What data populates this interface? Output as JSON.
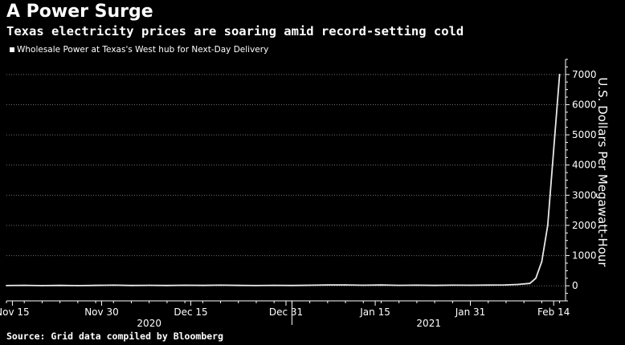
{
  "title": "A Power Surge",
  "subtitle": "Texas electricity prices are soaring amid record-setting cold",
  "source": "Source: Grid data compiled by Bloomberg",
  "colors": {
    "background": "#000000",
    "line": "#e8e8e8",
    "text": "#ffffff",
    "grid": "#707070"
  },
  "chart_data": {
    "type": "line",
    "title": "A Power Surge",
    "subtitle": "Texas electricity prices are soaring amid record-setting cold",
    "legend_position": "top-left",
    "grid": true,
    "y_axis_side": "right",
    "ylabel": "U.S. Dollars Per Megawatt-Hour",
    "ylim": [
      -500,
      7500
    ],
    "yticks": [
      0,
      1000,
      2000,
      3000,
      4000,
      5000,
      6000,
      7000
    ],
    "xlim": [
      "2020-11-14",
      "2021-02-16"
    ],
    "xticks": [
      {
        "date": "2020-11-15",
        "label": "Nov 15"
      },
      {
        "date": "2020-11-30",
        "label": "Nov 30"
      },
      {
        "date": "2020-12-15",
        "label": "Dec 15"
      },
      {
        "date": "2020-12-31",
        "label": "Dec 31"
      },
      {
        "date": "2021-01-15",
        "label": "Jan 15"
      },
      {
        "date": "2021-01-31",
        "label": "Jan 31"
      },
      {
        "date": "2021-02-14",
        "label": "Feb 14"
      }
    ],
    "year_labels": [
      {
        "date": "2020-12-08",
        "label": "2020"
      },
      {
        "date": "2021-01-24",
        "label": "2021"
      }
    ],
    "series": [
      {
        "name": "Wholesale Power at Texas's West hub for Next-Day Delivery",
        "points": [
          {
            "x": "2020-11-14",
            "y": 8
          },
          {
            "x": "2020-11-17",
            "y": 15
          },
          {
            "x": "2020-11-20",
            "y": 6
          },
          {
            "x": "2020-11-23",
            "y": 12
          },
          {
            "x": "2020-11-26",
            "y": 5
          },
          {
            "x": "2020-11-29",
            "y": 14
          },
          {
            "x": "2020-12-02",
            "y": 22
          },
          {
            "x": "2020-12-05",
            "y": 10
          },
          {
            "x": "2020-12-08",
            "y": 16
          },
          {
            "x": "2020-12-11",
            "y": 9
          },
          {
            "x": "2020-12-14",
            "y": 18
          },
          {
            "x": "2020-12-17",
            "y": 12
          },
          {
            "x": "2020-12-20",
            "y": 20
          },
          {
            "x": "2020-12-23",
            "y": 14
          },
          {
            "x": "2020-12-26",
            "y": 8
          },
          {
            "x": "2020-12-29",
            "y": 15
          },
          {
            "x": "2021-01-01",
            "y": 11
          },
          {
            "x": "2021-01-04",
            "y": 17
          },
          {
            "x": "2021-01-07",
            "y": 25
          },
          {
            "x": "2021-01-10",
            "y": 30
          },
          {
            "x": "2021-01-13",
            "y": 18
          },
          {
            "x": "2021-01-16",
            "y": 26
          },
          {
            "x": "2021-01-19",
            "y": 15
          },
          {
            "x": "2021-01-22",
            "y": 20
          },
          {
            "x": "2021-01-25",
            "y": 14
          },
          {
            "x": "2021-01-28",
            "y": 22
          },
          {
            "x": "2021-01-31",
            "y": 18
          },
          {
            "x": "2021-02-03",
            "y": 24
          },
          {
            "x": "2021-02-06",
            "y": 30
          },
          {
            "x": "2021-02-08",
            "y": 45
          },
          {
            "x": "2021-02-10",
            "y": 80
          },
          {
            "x": "2021-02-11",
            "y": 250
          },
          {
            "x": "2021-02-12",
            "y": 800
          },
          {
            "x": "2021-02-13",
            "y": 2000
          },
          {
            "x": "2021-02-14",
            "y": 4500
          },
          {
            "x": "2021-02-15",
            "y": 7000
          }
        ]
      }
    ]
  }
}
